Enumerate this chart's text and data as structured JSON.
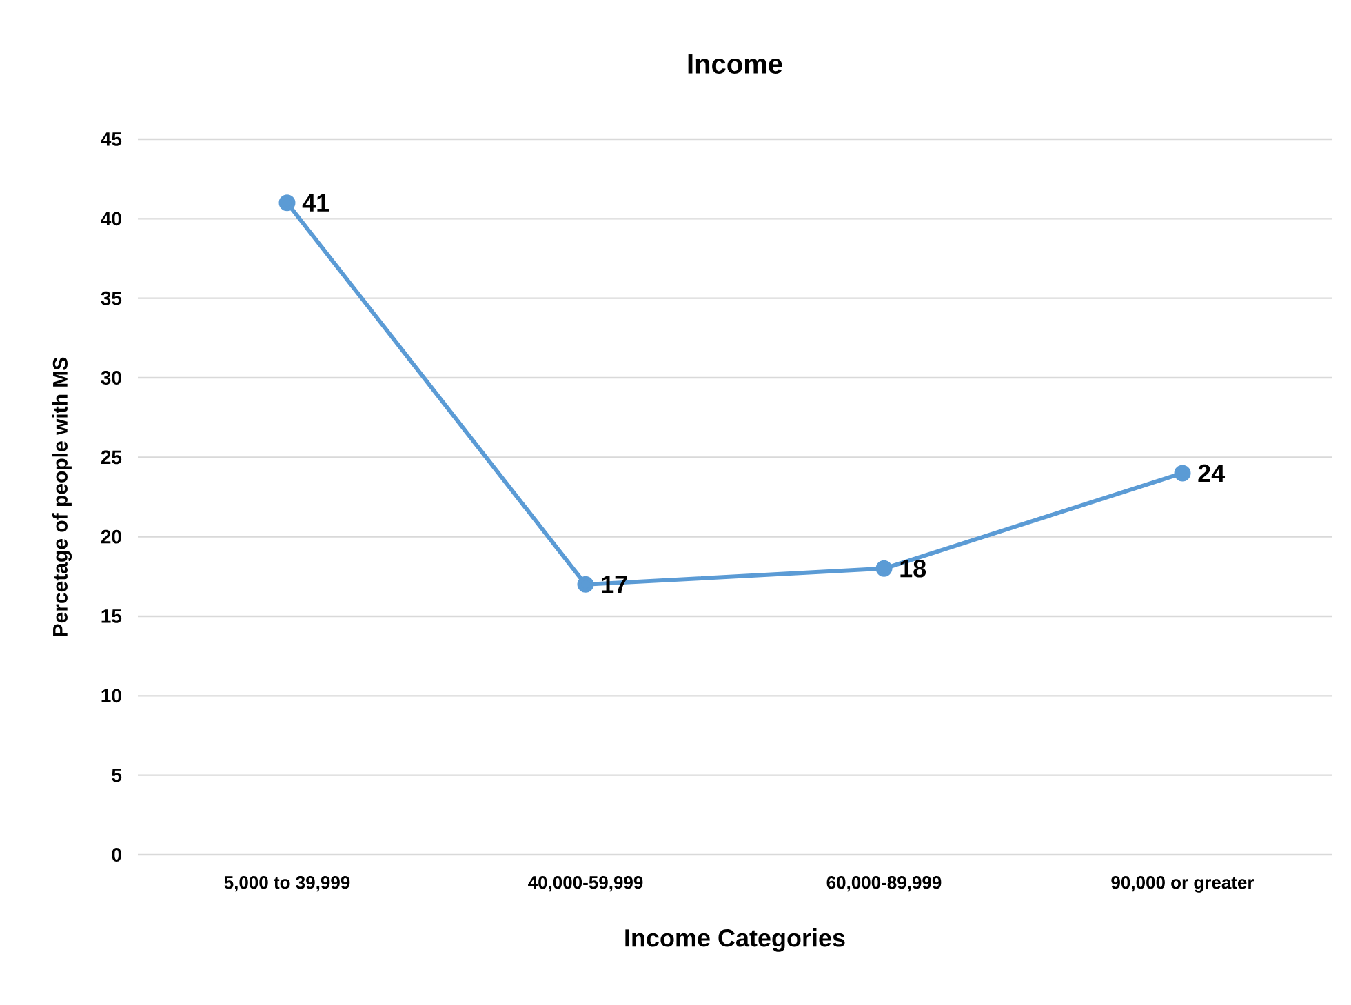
{
  "chart_data": {
    "type": "line",
    "title": "Income",
    "xlabel": "Income Categories",
    "ylabel": "Percetage of  people with MS",
    "categories": [
      "5,000 to 39,999",
      "40,000-59,999",
      "60,000-89,999",
      "90,000 or greater"
    ],
    "values": [
      41,
      17,
      18,
      24
    ],
    "color": "#5b9bd5",
    "ylim": [
      0,
      45
    ],
    "yticks": [
      0,
      5,
      10,
      15,
      20,
      25,
      30,
      35,
      40,
      45
    ],
    "grid": "y",
    "marker": "circle",
    "line_style": "solid",
    "data_labels": true
  }
}
